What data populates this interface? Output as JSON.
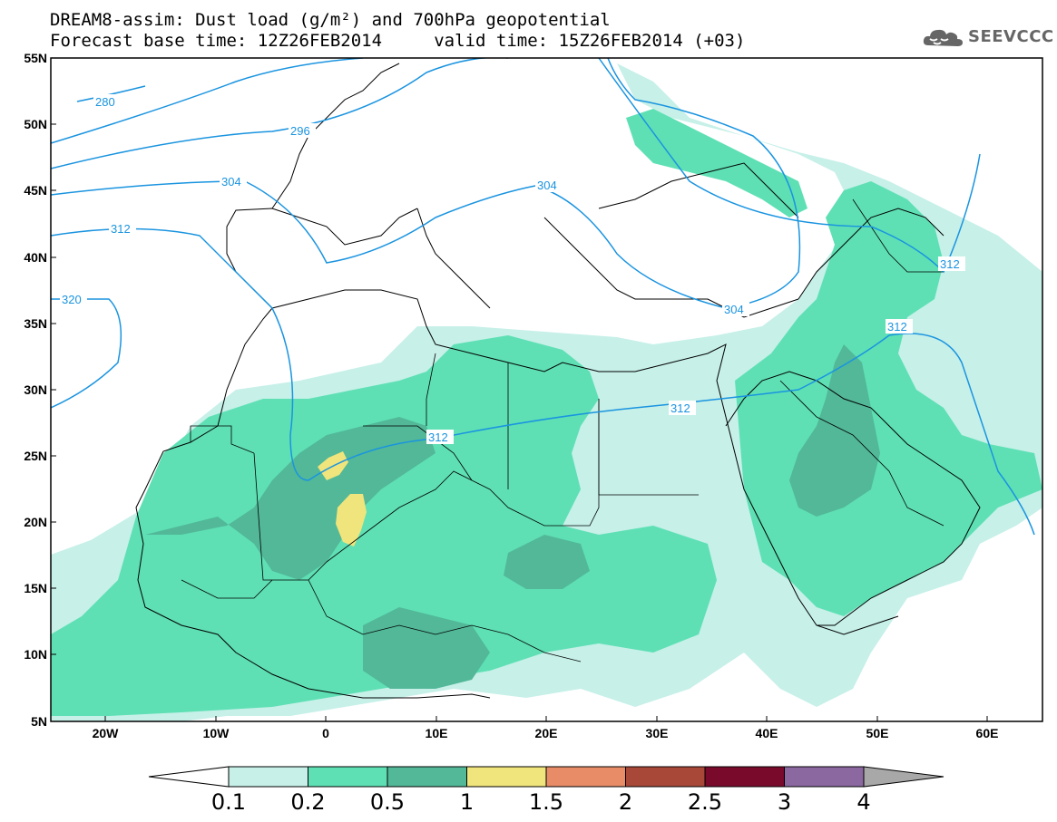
{
  "title": {
    "line1": "DREAM8-assim: Dust load (g/m²) and 700hPa geopotential",
    "line2": "Forecast base time: 12Z26FEB2014     valid time: 15Z26FEB2014 (+03)"
  },
  "logo": {
    "text": "SEEVCCC",
    "icon": "cloud-icon"
  },
  "axes": {
    "lat_labels": [
      "55N",
      "50N",
      "45N",
      "40N",
      "35N",
      "30N",
      "25N",
      "20N",
      "15N",
      "10N",
      "5N"
    ],
    "lon_labels": [
      "20W",
      "10W",
      "0",
      "10E",
      "20E",
      "30E",
      "40E",
      "50E",
      "60E"
    ]
  },
  "contour_labels": [
    "280",
    "296",
    "304",
    "312",
    "320",
    "304",
    "312",
    "312",
    "312",
    "304",
    "312"
  ],
  "colorbar": {
    "ticks": [
      "0.1",
      "0.2",
      "0.5",
      "1",
      "1.5",
      "2",
      "2.5",
      "3",
      "4"
    ],
    "colors": [
      "#c6f0e8",
      "#5ee0b4",
      "#52b898",
      "#f0e47c",
      "#e88c68",
      "#a84838",
      "#7a0a2c",
      "#8c68a0",
      "#a8a8a8"
    ]
  },
  "colors": {
    "contour": "#1a94e0",
    "border": "#000000"
  }
}
